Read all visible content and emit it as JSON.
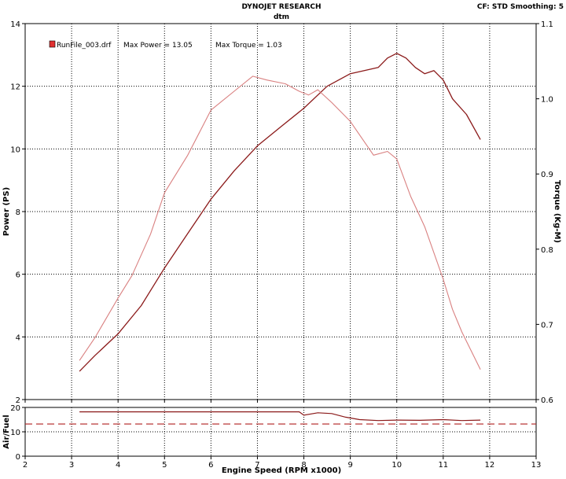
{
  "header": {
    "title": "DYNOJET RESEARCH",
    "subtitle": "dtm",
    "corner": "CF: STD  Smoothing: 5"
  },
  "legend": {
    "filename": "RunFile_003.drf",
    "max_power": "Max Power = 13.05",
    "max_torque": "Max Torque = 1.03"
  },
  "colors": {
    "power": "#8b1a1a",
    "torque": "#d98080",
    "afr_ref": "#b22222",
    "grid": "#000000",
    "legend_swatch": "#e03030"
  },
  "chart_data": [
    {
      "type": "line",
      "name": "main",
      "xlabel": "Engine Speed (RPM x1000)",
      "ylabel": "Power (PS)",
      "y2label": "Torque (Kg-M)",
      "xlim": [
        2,
        13
      ],
      "ylim": [
        2,
        14
      ],
      "y2lim": [
        0.6,
        1.1
      ],
      "xticks": [
        "2",
        "3",
        "4",
        "5",
        "6",
        "7",
        "8",
        "9",
        "10",
        "11",
        "12",
        "13"
      ],
      "yticks": [
        "2",
        "4",
        "6",
        "8",
        "10",
        "12",
        "14"
      ],
      "y2ticks": [
        "0.6",
        "0.7",
        "0.8",
        "0.9",
        "1.0",
        "1.1"
      ],
      "grid": true,
      "series": [
        {
          "key": "power",
          "axis": "left",
          "x": [
            3.17,
            3.5,
            4.0,
            4.5,
            5.0,
            5.5,
            6.0,
            6.5,
            7.0,
            7.5,
            8.0,
            8.5,
            9.0,
            9.3,
            9.6,
            9.8,
            10.0,
            10.2,
            10.4,
            10.6,
            10.8,
            11.0,
            11.2,
            11.5,
            11.8
          ],
          "y": [
            2.9,
            3.4,
            4.1,
            5.0,
            6.2,
            7.3,
            8.4,
            9.3,
            10.1,
            10.7,
            11.3,
            12.0,
            12.4,
            12.5,
            12.6,
            12.9,
            13.05,
            12.9,
            12.6,
            12.4,
            12.5,
            12.2,
            11.6,
            11.1,
            10.3
          ]
        },
        {
          "key": "torque",
          "axis": "right",
          "x": [
            3.17,
            3.5,
            4.0,
            4.3,
            4.7,
            5.0,
            5.5,
            6.0,
            6.5,
            6.9,
            7.2,
            7.6,
            7.9,
            8.1,
            8.3,
            8.6,
            9.0,
            9.5,
            9.8,
            10.0,
            10.3,
            10.6,
            11.0,
            11.2,
            11.4,
            11.6,
            11.8
          ],
          "y": [
            0.652,
            0.682,
            0.735,
            0.765,
            0.82,
            0.875,
            0.925,
            0.985,
            1.01,
            1.03,
            1.025,
            1.02,
            1.01,
            1.005,
            1.012,
            0.995,
            0.97,
            0.925,
            0.93,
            0.92,
            0.87,
            0.83,
            0.76,
            0.72,
            0.69,
            0.665,
            0.64
          ]
        }
      ]
    },
    {
      "type": "line",
      "name": "afr",
      "xlabel": "Engine Speed (RPM x1000)",
      "ylabel": "Air/Fuel",
      "xlim": [
        2,
        13
      ],
      "ylim": [
        0,
        20
      ],
      "yticks": [
        "0",
        "10",
        "20"
      ],
      "grid": true,
      "reference": 13.2,
      "series": [
        {
          "key": "afr",
          "x": [
            3.17,
            4.0,
            5.0,
            6.0,
            7.0,
            7.9,
            8.0,
            8.3,
            8.6,
            8.9,
            9.2,
            9.6,
            10.0,
            10.5,
            11.0,
            11.4,
            11.8
          ],
          "y": [
            18.2,
            18.2,
            18.2,
            18.2,
            18.2,
            18.2,
            16.8,
            17.8,
            17.5,
            16.0,
            15.0,
            14.6,
            14.8,
            14.7,
            15.0,
            14.6,
            14.8
          ]
        }
      ]
    }
  ]
}
